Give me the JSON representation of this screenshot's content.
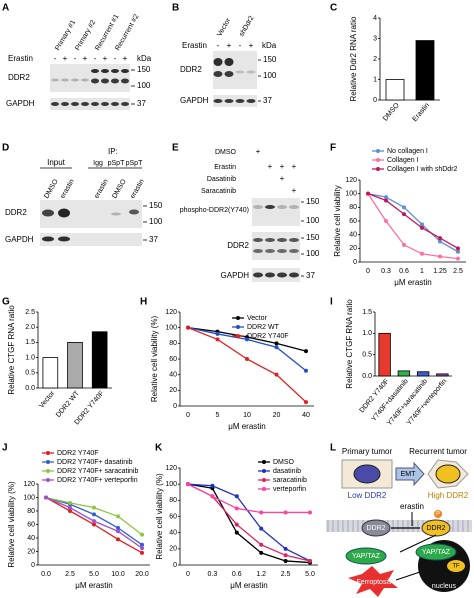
{
  "panel_labels": [
    "A",
    "B",
    "C",
    "D",
    "E",
    "F",
    "G",
    "H",
    "I",
    "J",
    "K",
    "L"
  ],
  "blot_a": {
    "lanes": [
      "Primary #1",
      "Primary #2",
      "Recurrent #1",
      "Recurrent #2"
    ],
    "treatment": "Erastin",
    "signs": [
      "-",
      "+",
      "-",
      "+",
      "-",
      "+",
      "-",
      "+"
    ],
    "proteins": [
      "DDR2",
      "GAPDH"
    ],
    "unit": "kDa",
    "markers": [
      "150",
      "100",
      "37"
    ]
  },
  "blot_b": {
    "lanes": [
      "Vector",
      "shDdr2"
    ],
    "treatment": "Erastin",
    "signs": [
      "-",
      "+",
      "-",
      "+"
    ],
    "proteins": [
      "DDR2",
      "GAPDH"
    ],
    "unit": "kDa",
    "markers": [
      "150",
      "100",
      "37"
    ]
  },
  "blot_d": {
    "ip": "IP:",
    "input": "Input",
    "ip_lanes": [
      "Igg",
      "pSpT",
      "pSpT"
    ],
    "lanes": [
      "DMSO",
      "erastin",
      "erastin",
      "DMSO",
      "erastin"
    ],
    "proteins": [
      "DDR2",
      "GAPDH"
    ],
    "markers": [
      "150",
      "100",
      "37"
    ]
  },
  "blot_e": {
    "treatments": [
      "DMSO",
      "Erastin",
      "Dasatinib",
      "Saracatinib"
    ],
    "signs": [
      [
        "+"
      ],
      [
        "+",
        "+",
        "+"
      ],
      [
        "+"
      ],
      [
        "+"
      ]
    ],
    "proteins": [
      "phospho-DDR2(Y740)",
      "DDR2",
      "GAPDH"
    ],
    "markers": [
      "150",
      "100",
      "150",
      "100",
      "37"
    ]
  },
  "diagram_l": {
    "primary": "Primary tumor",
    "recurrent": "Recurrent tumor",
    "low": "Low DDR2",
    "high": "High DDR2",
    "emt": "EMT",
    "drug": "erastin",
    "receptor": [
      "DDR2",
      "DDR2"
    ],
    "phospho": "P",
    "effector": [
      "YAP/TAZ",
      "YAP/TAZ"
    ],
    "tf": "TF",
    "outcome": "Ferroptosis",
    "nucleus": "nucleus"
  },
  "chart_data": [
    {
      "type": "bar",
      "ylabel": "Relative Ddr2 RNA ratio",
      "categories": [
        "DMSO",
        "Erastin"
      ],
      "values": [
        1,
        2.9
      ],
      "colors": [
        "#ffffff",
        "#000000"
      ],
      "ylim": [
        0,
        4
      ],
      "yticks": [
        0,
        1,
        2,
        3,
        4
      ]
    },
    {
      "type": "line",
      "ylabel": "Relative cell viability",
      "xlabel": "μM erastin",
      "categories": [
        "0",
        "0.3",
        "0.6",
        "1",
        "1.25",
        "2.5"
      ],
      "series": [
        {
          "name": "No collagen I",
          "color": "#5b8fd6",
          "values": [
            100,
            95,
            80,
            55,
            30,
            15
          ]
        },
        {
          "name": "Collagen I",
          "color": "#ff6fa0",
          "values": [
            100,
            60,
            25,
            12,
            8,
            5
          ]
        },
        {
          "name": "Collagen I with shDdr2",
          "color": "#c2185b",
          "values": [
            100,
            90,
            70,
            50,
            35,
            20
          ]
        }
      ],
      "ylim": [
        0,
        120
      ],
      "yticks": [
        0,
        20,
        40,
        60,
        80,
        100,
        120
      ]
    },
    {
      "type": "bar",
      "ylabel": "Relative CTGF RNA ratio",
      "categories": [
        "Vector",
        "DDR2 WT",
        "DDR2 Y740F"
      ],
      "values": [
        1,
        1.5,
        1.85
      ],
      "colors": [
        "#ffffff",
        "#aaaaaa",
        "#000000"
      ],
      "ylim": [
        0,
        2.5
      ],
      "yticks": [
        {
          "value": 0,
          "label": "0.0"
        },
        {
          "value": 0.5,
          "label": "0.5"
        },
        {
          "value": 1,
          "label": "1.0"
        },
        {
          "value": 1.5,
          "label": "1.5"
        },
        {
          "value": 2,
          "label": "2.0"
        },
        {
          "value": 2.5,
          "label": "2.5"
        }
      ]
    },
    {
      "type": "line",
      "ylabel": "Relative cell viability (%)",
      "xlabel": "μM erastin",
      "categories": [
        "0",
        "5",
        "10",
        "20",
        "40"
      ],
      "series": [
        {
          "name": "Vector",
          "color": "#000000",
          "values": [
            100,
            95,
            88,
            80,
            70
          ]
        },
        {
          "name": "DDR2 WT",
          "color": "#2050c8",
          "values": [
            100,
            92,
            85,
            75,
            45
          ]
        },
        {
          "name": "DDR2 Y740F",
          "color": "#e02020",
          "values": [
            100,
            85,
            60,
            40,
            5
          ]
        }
      ],
      "ylim": [
        0,
        120
      ],
      "yticks": [
        0,
        20,
        40,
        60,
        80,
        100,
        120
      ]
    },
    {
      "type": "bar",
      "ylabel": "Relative CTGF RNA ratio",
      "categories": [
        "DDR2 Y740F",
        "Y740F+dasatinib",
        "Y740F+saracatinib",
        "Y740F+verteporfin"
      ],
      "values": [
        1.0,
        0.12,
        0.1,
        0.05
      ],
      "colors": [
        "#e8392f",
        "#2db34a",
        "#3b5fcf",
        "#8e44ad"
      ],
      "ylim": [
        0,
        1.5
      ],
      "yticks": [
        {
          "value": 0,
          "label": "0.0"
        },
        {
          "value": 0.5,
          "label": "0.5"
        },
        {
          "value": 1,
          "label": "1.0"
        },
        {
          "value": 1.5,
          "label": "1.5"
        }
      ]
    },
    {
      "type": "line",
      "ylabel": "Relative cell viability (%)",
      "xlabel": "μM erastin",
      "categories": [
        "0.0",
        "2.5",
        "5.0",
        "10.0",
        "20.0"
      ],
      "series": [
        {
          "name": "DDR2 Y740F",
          "color": "#e02020",
          "values": [
            100,
            80,
            60,
            38,
            18
          ]
        },
        {
          "name": "DDR2 Y740F+ dasatinib",
          "color": "#3060d0",
          "values": [
            100,
            90,
            75,
            55,
            30
          ]
        },
        {
          "name": "DDR2 Y740F+ saracatinib",
          "color": "#8cc63f",
          "values": [
            100,
            92,
            85,
            72,
            45
          ]
        },
        {
          "name": "DDR2 Y740F+ verteporfin",
          "color": "#a050d0",
          "values": [
            100,
            85,
            65,
            50,
            25
          ]
        }
      ],
      "ylim": [
        0,
        120
      ],
      "yticks": [
        0,
        20,
        40,
        60,
        80,
        100,
        120
      ]
    },
    {
      "type": "line",
      "ylabel": "Relative cell viability (%)",
      "xlabel": "μM erastin",
      "categories": [
        "0",
        "0.3",
        "0.6",
        "1.2",
        "2.5",
        "5.0"
      ],
      "series": [
        {
          "name": "DMSO",
          "color": "#000000",
          "values": [
            100,
            95,
            40,
            15,
            5,
            3
          ]
        },
        {
          "name": "dasatinib",
          "color": "#2030c0",
          "values": [
            100,
            98,
            85,
            45,
            20,
            5
          ]
        },
        {
          "name": "saracatinib",
          "color": "#e02060",
          "values": [
            100,
            85,
            50,
            25,
            12,
            5
          ]
        },
        {
          "name": "verteporfin",
          "color": "#ff40a0",
          "values": [
            100,
            85,
            70,
            65,
            65,
            65
          ]
        }
      ],
      "ylim": [
        0,
        120
      ],
      "yticks": [
        0,
        20,
        40,
        60,
        80,
        100,
        120
      ]
    }
  ]
}
